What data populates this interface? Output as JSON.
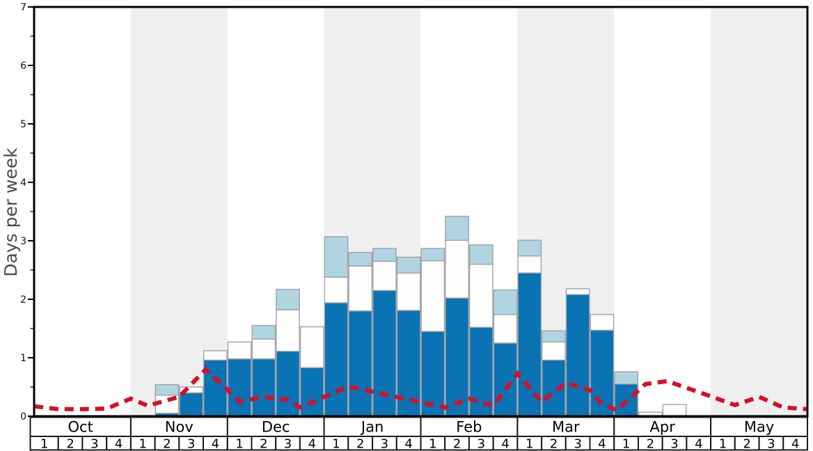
{
  "y_axis": {
    "label": "Days per week",
    "min": 0,
    "max": 7,
    "tick_step": 1,
    "minor_tick_step": 0.5,
    "tick_labels": [
      "0",
      "1",
      "2",
      "3",
      "4",
      "5",
      "6",
      "7"
    ]
  },
  "x_axis": {
    "months": [
      {
        "label": "Oct",
        "weeks": [
          "1",
          "2",
          "3",
          "4"
        ]
      },
      {
        "label": "Nov",
        "weeks": [
          "1",
          "2",
          "3",
          "4"
        ]
      },
      {
        "label": "Dec",
        "weeks": [
          "1",
          "2",
          "3",
          "4"
        ]
      },
      {
        "label": "Jan",
        "weeks": [
          "1",
          "2",
          "3",
          "4"
        ]
      },
      {
        "label": "Feb",
        "weeks": [
          "1",
          "2",
          "3",
          "4"
        ]
      },
      {
        "label": "Mar",
        "weeks": [
          "1",
          "2",
          "3",
          "4"
        ]
      },
      {
        "label": "Apr",
        "weeks": [
          "1",
          "2",
          "3",
          "4"
        ]
      },
      {
        "label": "May",
        "weeks": [
          "1",
          "2",
          "3",
          "4"
        ]
      }
    ]
  },
  "colors": {
    "bar_dark_blue": "#0a73b3",
    "bar_white": "#fdfefb",
    "bar_light_blue": "#b0d5e1",
    "bar_border": "#a0a0a8",
    "line_red": "#d50f28",
    "band_gray": "#efefef",
    "axis_black": "#000000",
    "row_border": "#1a1a1a",
    "y_title_gray": "#4a4a4a"
  },
  "chart_data": {
    "type": "bar",
    "stacked": true,
    "title": "",
    "ylabel": "Days per week",
    "ylim": [
      0,
      7
    ],
    "grid": false,
    "legend": false,
    "shaded_months": [
      1,
      3,
      5,
      7
    ],
    "categories": [
      "Oct w1",
      "Oct w2",
      "Oct w3",
      "Oct w4",
      "Nov w1",
      "Nov w2",
      "Nov w3",
      "Nov w4",
      "Dec w1",
      "Dec w2",
      "Dec w3",
      "Dec w4",
      "Jan w1",
      "Jan w2",
      "Jan w3",
      "Jan w4",
      "Feb w1",
      "Feb w2",
      "Feb w3",
      "Feb w4",
      "Mar w1",
      "Mar w2",
      "Mar w3",
      "Mar w4",
      "Apr w1",
      "Apr w2",
      "Apr w3",
      "Apr w4",
      "May w1",
      "May w2",
      "May w3",
      "May w4"
    ],
    "series": [
      {
        "name": "dark blue segment (bottom of stack)",
        "color": "#0a73b3",
        "values": [
          0,
          0,
          0,
          0,
          0,
          0.05,
          0.4,
          0.96,
          0.98,
          0.98,
          1.11,
          0.83,
          1.94,
          1.8,
          2.15,
          1.81,
          1.45,
          2.02,
          1.52,
          1.25,
          2.45,
          0.96,
          2.08,
          1.47,
          0.55,
          0,
          0,
          0,
          0,
          0,
          0,
          0
        ]
      },
      {
        "name": "white segment (middle of stack)",
        "color": "#fdfefb",
        "values": [
          0,
          0,
          0,
          0,
          0,
          0.31,
          0.1,
          0.16,
          0.29,
          0.34,
          0.71,
          0.7,
          0.44,
          0.77,
          0.5,
          0.64,
          1.21,
          0.99,
          1.08,
          0.49,
          0.29,
          0.31,
          0.1,
          0.27,
          0,
          0.07,
          0.2,
          0,
          0,
          0,
          0,
          0
        ]
      },
      {
        "name": "light blue segment (top of stack)",
        "color": "#b0d5e1",
        "values": [
          0,
          0,
          0,
          0,
          0,
          0.18,
          0,
          0,
          0,
          0.23,
          0.35,
          0,
          0.69,
          0.23,
          0.22,
          0.27,
          0.21,
          0.41,
          0.33,
          0.42,
          0.27,
          0.19,
          0,
          0,
          0.21,
          0,
          0,
          0,
          0,
          0,
          0,
          0
        ]
      }
    ],
    "line": {
      "name": "red dashed trend line",
      "color": "#d50f28",
      "dash": true,
      "points": [
        [
          0,
          0.17
        ],
        [
          1,
          0.12
        ],
        [
          2,
          0.12
        ],
        [
          3,
          0.13
        ],
        [
          4,
          0.3
        ],
        [
          4.7,
          0.18
        ],
        [
          6,
          0.33
        ],
        [
          7.1,
          0.8
        ],
        [
          8,
          0.45
        ],
        [
          8.5,
          0.25
        ],
        [
          9.5,
          0.33
        ],
        [
          10.5,
          0.28
        ],
        [
          11,
          0.15
        ],
        [
          12,
          0.33
        ],
        [
          13,
          0.51
        ],
        [
          14,
          0.42
        ],
        [
          15,
          0.33
        ],
        [
          16,
          0.24
        ],
        [
          17,
          0.15
        ],
        [
          18,
          0.3
        ],
        [
          19,
          0.18
        ],
        [
          20,
          0.73
        ],
        [
          21,
          0.24
        ],
        [
          22,
          0.57
        ],
        [
          23,
          0.45
        ],
        [
          23.4,
          0.25
        ],
        [
          24.1,
          0.1
        ],
        [
          25.3,
          0.55
        ],
        [
          26.2,
          0.6
        ],
        [
          28,
          0.34
        ],
        [
          29,
          0.19
        ],
        [
          30,
          0.33
        ],
        [
          31,
          0.15
        ],
        [
          32,
          0.12
        ]
      ]
    }
  }
}
